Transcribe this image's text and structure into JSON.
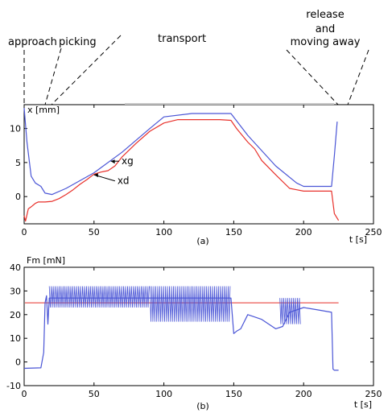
{
  "phases": {
    "approach": "approach",
    "picking": "picking",
    "transport": "transport",
    "release_1": "release",
    "release_2": "and",
    "release_3": "moving away"
  },
  "colors": {
    "desired": "#e8302a",
    "actual": "#4a55d6",
    "reference": "#e8302a",
    "force": "#4a55d6"
  },
  "chart_data": [
    {
      "type": "line",
      "caption": "(a)",
      "ylabel": "x [mm]",
      "xlabel": "t [s]",
      "xlim": [
        0,
        250
      ],
      "ylim": [
        -4,
        13.5
      ],
      "xticks": [
        0,
        50,
        100,
        150,
        200,
        250
      ],
      "yticks": [
        0,
        5,
        10
      ],
      "annotations": [
        {
          "text": "xg",
          "x": 68,
          "y": 5.2,
          "tx": 62,
          "ty": 5.2
        },
        {
          "text": "xd",
          "x": 65,
          "y": 2.3,
          "tx": 50,
          "ty": 3.2
        }
      ],
      "series": [
        {
          "name": "xg",
          "color": "#4a55d6",
          "x": [
            0,
            2,
            5,
            8,
            12,
            15,
            20,
            30,
            50,
            70,
            90,
            100,
            120,
            140,
            148,
            160,
            180,
            195,
            200,
            210,
            220,
            222,
            224
          ],
          "y": [
            13,
            8,
            3,
            2,
            1.5,
            0.5,
            0.3,
            1.2,
            3.5,
            6.5,
            10,
            11.7,
            12.2,
            12.2,
            12.2,
            9,
            4.5,
            2,
            1.5,
            1.5,
            1.5,
            6,
            11
          ]
        },
        {
          "name": "xd",
          "color": "#e8302a",
          "x": [
            0,
            1,
            3,
            5,
            8,
            10,
            15,
            20,
            25,
            30,
            35,
            40,
            45,
            50,
            55,
            60,
            65,
            70,
            80,
            90,
            100,
            110,
            120,
            130,
            140,
            148,
            152,
            160,
            165,
            170,
            180,
            190,
            195,
            200,
            210,
            220,
            222,
            225
          ],
          "y": [
            -2.8,
            -3.6,
            -1.8,
            -1.5,
            -1,
            -0.8,
            -0.8,
            -0.7,
            -0.3,
            0.3,
            1,
            1.8,
            2.5,
            3.3,
            3.6,
            3.8,
            4.5,
            5.8,
            7.8,
            9.6,
            10.8,
            11.3,
            11.3,
            11.3,
            11.3,
            11.2,
            10,
            8,
            7,
            5.3,
            3.2,
            1.2,
            1,
            0.8,
            0.8,
            0.8,
            -2.5,
            -3.5
          ]
        }
      ]
    },
    {
      "type": "line",
      "caption": "(b)",
      "ylabel": "Fm [mN]",
      "xlabel": "t [s]",
      "xlim": [
        0,
        250
      ],
      "ylim": [
        -10,
        40
      ],
      "xticks": [
        0,
        50,
        100,
        150,
        200,
        250
      ],
      "yticks": [
        -10,
        0,
        10,
        20,
        30,
        40
      ],
      "reference_line": {
        "y": 25,
        "color": "#e8302a"
      },
      "series": [
        {
          "name": "Fm",
          "color": "#4a55d6",
          "x": [
            0,
            12,
            14,
            15,
            16,
            17,
            18,
            20,
            148,
            150,
            152,
            155,
            160,
            170,
            180,
            185,
            190,
            200,
            210,
            220,
            221,
            222,
            223,
            225
          ],
          "y": [
            -2.7,
            -2.5,
            4,
            25,
            28,
            16,
            27,
            27,
            27,
            12,
            13,
            14,
            20,
            18,
            14,
            15,
            21,
            23,
            22,
            21,
            -3,
            -3.5,
            -3.5,
            -3.5
          ]
        }
      ],
      "oscillation_bands": [
        {
          "x_start": 18,
          "x_end": 90,
          "low": 23,
          "high": 32
        },
        {
          "x_start": 90,
          "x_end": 148,
          "low": 17,
          "high": 32
        },
        {
          "x_start": 183,
          "x_end": 198,
          "low": 16,
          "high": 27
        }
      ]
    }
  ]
}
